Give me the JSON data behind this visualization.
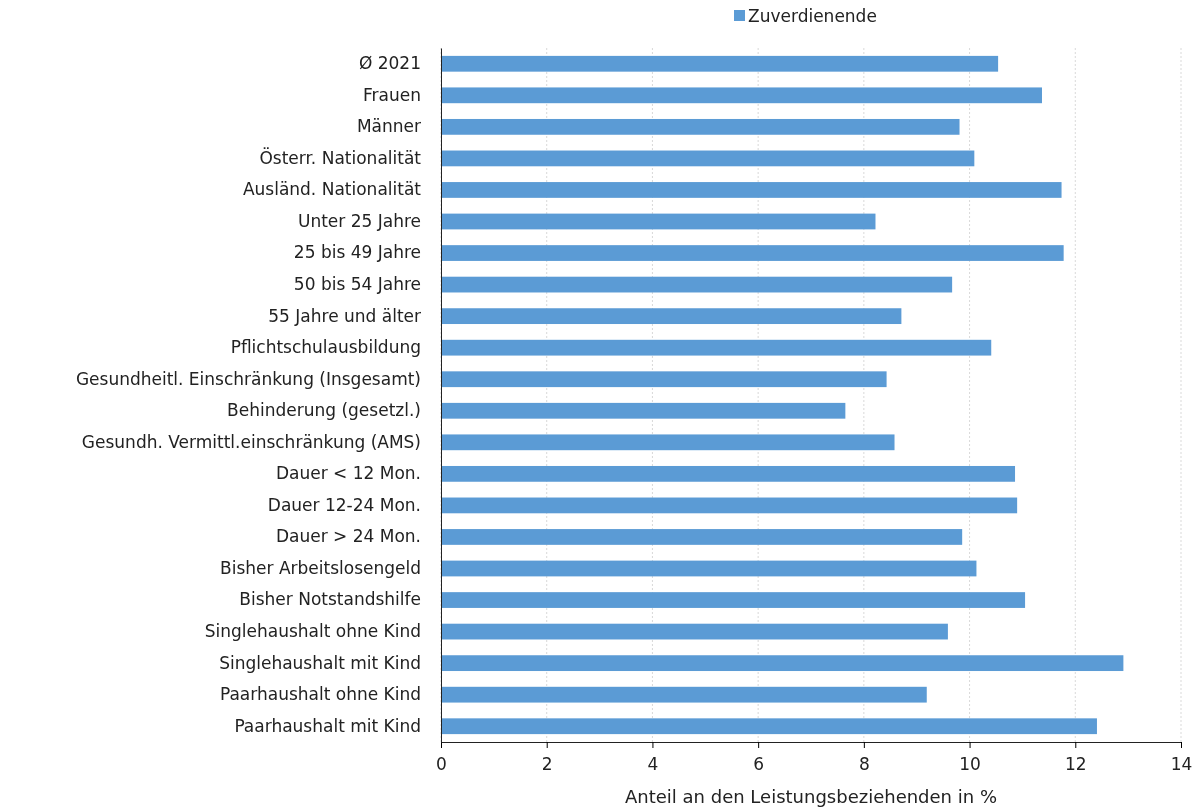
{
  "chart_data": {
    "type": "bar",
    "orientation": "horizontal",
    "xlabel": "Anteil an den Leistungsbeziehenden in %",
    "categories": [
      "Ø 2021",
      "Frauen",
      "Männer",
      "Österr. Nationalität",
      "Ausländ. Nationalität",
      "Unter 25 Jahre",
      "25 bis 49 Jahre",
      "50 bis 54 Jahre",
      "55 Jahre und älter",
      "Pflichtschulausbildung",
      "Gesundheitl. Einschränkung (Insgesamt)",
      "Behinderung (gesetzl.)",
      "Gesundh. Vermittl.einschränkung (AMS)",
      "Dauer < 12 Mon.",
      "Dauer 12-24 Mon.",
      "Dauer > 24 Mon.",
      "Bisher Arbeitslosengeld",
      "Bisher Notstandshilfe",
      "Singlehaushalt ohne Kind",
      "Singlehaushalt mit Kind",
      "Paarhaushalt ohne Kind",
      "Paarhaushalt mit Kind"
    ],
    "series": [
      {
        "name": "Zuverdienende",
        "color": "#5b9bd5",
        "values": [
          10.54,
          11.37,
          9.81,
          10.09,
          11.74,
          8.22,
          11.78,
          9.67,
          8.71,
          10.41,
          8.43,
          7.65,
          8.58,
          10.86,
          10.9,
          9.86,
          10.13,
          11.05,
          9.59,
          12.91,
          9.19,
          12.41
        ]
      }
    ],
    "xlim": [
      0,
      14
    ],
    "xticks": [
      0,
      2,
      4,
      6,
      8,
      10,
      12,
      14
    ],
    "grid": "x",
    "legend": "top"
  }
}
